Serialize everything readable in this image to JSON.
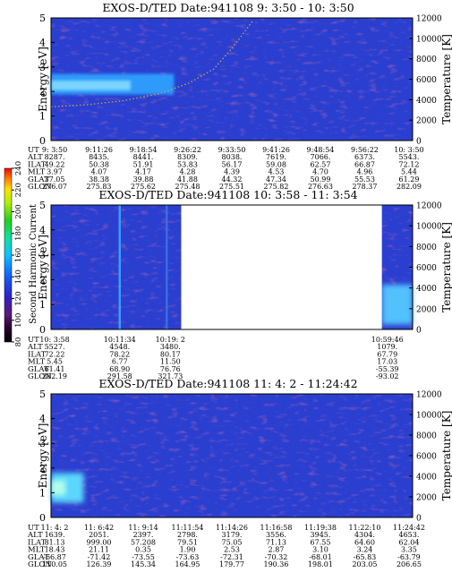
{
  "chart_data": [
    {
      "type": "heatmap",
      "title": "EXOS-D/TED   Date:941108  9: 3:50 - 10: 3:50",
      "ylabel": "Energy [eV]",
      "y2label": "Temperature [K]",
      "ylim": [
        0,
        5
      ],
      "y2lim": [
        0,
        12000
      ],
      "yticks": [
        "0",
        "1",
        "2",
        "3",
        "4",
        "5"
      ],
      "y2ticks": [
        "0",
        "2000",
        "4000",
        "6000",
        "8000",
        "10000",
        "12000"
      ],
      "features": [
        {
          "kind": "band",
          "x_from": 0,
          "x_to": 0.34,
          "y_center": 2.3,
          "y_half_width": 0.42,
          "color": "#2f9fff"
        },
        {
          "kind": "band_core",
          "x_from": 0,
          "x_to": 0.22,
          "y_center": 2.25,
          "y_half_width": 0.2,
          "color": "#7fd8ff"
        },
        {
          "kind": "temperature_curve",
          "color": "#c8a050",
          "points": [
            [
              0,
              3300
            ],
            [
              0.1,
              3500
            ],
            [
              0.2,
              3900
            ],
            [
              0.3,
              4600
            ],
            [
              0.38,
              5600
            ],
            [
              0.45,
              7000
            ],
            [
              0.5,
              9000
            ],
            [
              0.56,
              11800
            ]
          ]
        }
      ],
      "ephemeris": {
        "rows": [
          {
            "label": "UT",
            "values": [
              "9: 3:50",
              "9:11:26",
              "9:18:54",
              "9:26:22",
              "9:33:50",
              "9:41:26",
              "9:48:54",
              "9:56:22",
              "10: 3:50"
            ]
          },
          {
            "label": "ALT",
            "values": [
              "8287.",
              "8435.",
              "8441.",
              "8309.",
              "8038.",
              "7619.",
              "7066.",
              "6373.",
              "5543."
            ]
          },
          {
            "label": "ILAT",
            "values": [
              "49.22",
              "50.38",
              "51.91",
              "53.83",
              "56.17",
              "59.08",
              "62.57",
              "66.87",
              "72.12"
            ]
          },
          {
            "label": "MLT",
            "values": [
              "3.97",
              "4.07",
              "4.17",
              "4.28",
              "4.39",
              "4.53",
              "4.70",
              "4.96",
              "5.44"
            ]
          },
          {
            "label": "GLAT",
            "values": [
              "37.05",
              "38.38",
              "39.88",
              "41.88",
              "44.32",
              "47.34",
              "50.99",
              "55.53",
              "61.29"
            ]
          },
          {
            "label": "GLON",
            "values": [
              "276.07",
              "275.83",
              "275.62",
              "275.48",
              "275.51",
              "275.82",
              "276.63",
              "278.37",
              "282.09"
            ]
          }
        ]
      }
    },
    {
      "type": "heatmap",
      "title": "EXOS-D/TED   Date:941108  10: 3:58 - 11: 3:54",
      "ylabel": "Energy [eV]",
      "y2label": "Temperature [K]",
      "ylim": [
        0,
        5
      ],
      "y2lim": [
        0,
        12000
      ],
      "yticks": [
        "0",
        "1",
        "2",
        "3",
        "4",
        "5"
      ],
      "y2ticks": [
        "0",
        "2000",
        "4000",
        "6000",
        "8000",
        "10000",
        "12000"
      ],
      "gap": {
        "x_from": 0.36,
        "x_to": 0.915
      },
      "features": [
        {
          "kind": "vline",
          "x": 0.19,
          "color": "#3aa0ff"
        },
        {
          "kind": "vline",
          "x": 0.32,
          "color": "#3a6fe0"
        },
        {
          "kind": "blob",
          "x_from": 0.915,
          "x_to": 1.0,
          "y_from": 0.2,
          "y_to": 1.8,
          "color": "#55c8ff"
        }
      ],
      "colorbar": {
        "label": "Second Harmonic Current",
        "ticks": [
          "80",
          "100",
          "120",
          "140",
          "160",
          "180",
          "200",
          "220",
          "240"
        ]
      },
      "ephemeris": {
        "rows": [
          {
            "label": "UT",
            "values": [
              "10: 3:58",
              "10:11:34",
              "10:19: 2",
              "10:59:46"
            ]
          },
          {
            "label": "ALT",
            "values": [
              "5527.",
              "4548.",
              "3480.",
              "1079."
            ]
          },
          {
            "label": "ILAT",
            "values": [
              "72.22",
              "78.22",
              "80.17",
              "67.79"
            ]
          },
          {
            "label": "MLT",
            "values": [
              "5.45",
              "6.77",
              "11.50",
              "17.03"
            ]
          },
          {
            "label": "GLAT",
            "values": [
              "61.41",
              "68.90",
              "76.76",
              "-55.39"
            ]
          },
          {
            "label": "GLON",
            "values": [
              "282.19",
              "291.58",
              "321.73",
              "-93.02"
            ]
          }
        ]
      }
    },
    {
      "type": "heatmap",
      "title": "EXOS-D/TED   Date:941108  11: 4: 2 - 11:24:42",
      "ylabel": "Energy [eV]",
      "y2label": "Temperature [K]",
      "ylim": [
        0,
        5
      ],
      "y2lim": [
        0,
        12000
      ],
      "yticks": [
        "0",
        "1",
        "2",
        "3",
        "4",
        "5"
      ],
      "y2ticks": [
        "0",
        "2000",
        "4000",
        "6000",
        "8000",
        "10000",
        "12000"
      ],
      "features": [
        {
          "kind": "blob",
          "x_from": 0.0,
          "x_to": 0.09,
          "y_from": 0.6,
          "y_to": 1.8,
          "color": "#5ee0ff"
        },
        {
          "kind": "blob_core",
          "x_from": 0.0,
          "x_to": 0.04,
          "y_from": 0.9,
          "y_to": 1.5,
          "color": "#b8ffe8"
        }
      ],
      "ephemeris": {
        "rows": [
          {
            "label": "UT",
            "values": [
              "11: 4: 2",
              "11: 6:42",
              "11: 9:14",
              "11:11:54",
              "11:14:26",
              "11:16:58",
              "11:19:38",
              "11:22:10",
              "11:24:42"
            ]
          },
          {
            "label": "ALT",
            "values": [
              "1639.",
              "2051.",
              "2397.",
              "2798.",
              "3179.",
              "3556.",
              "3945.",
              "4304.",
              "4653."
            ]
          },
          {
            "label": "ILAT",
            "values": [
              "81.13",
              "999.00",
              "57.208",
              "79.51",
              "75.05",
              "71.13",
              "67.55",
              "64.60",
              "62.04"
            ]
          },
          {
            "label": "MLT",
            "values": [
              "18.43",
              "21.11",
              "0.35",
              "1.90",
              "2.53",
              "2.87",
              "3.10",
              "3.24",
              "3.35"
            ]
          },
          {
            "label": "GLAT",
            "values": [
              "-66.87",
              "-71.42",
              "-73.55",
              "-73.63",
              "-72.31",
              "-70.32",
              "-68.01",
              "-65.83",
              "-63.79"
            ]
          },
          {
            "label": "GLON",
            "values": [
              "110.05",
              "126.39",
              "145.34",
              "164.95",
              "179.77",
              "190.36",
              "198.01",
              "203.05",
              "206.65"
            ]
          }
        ]
      }
    }
  ]
}
